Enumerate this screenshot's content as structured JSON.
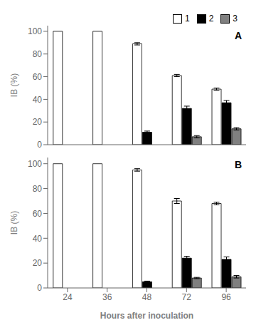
{
  "chart_data": [
    {
      "type": "bar",
      "annotations": [
        "A"
      ],
      "categories": [
        "24",
        "36",
        "48",
        "72",
        "96"
      ],
      "series": [
        {
          "name": "1",
          "color": "#ffffff",
          "values": [
            100,
            100,
            89,
            61,
            49
          ],
          "errors": [
            0,
            0,
            1,
            1,
            1
          ]
        },
        {
          "name": "2",
          "color": "#000000",
          "values": [
            0,
            0,
            11,
            32,
            37
          ],
          "errors": [
            0,
            0,
            1,
            2,
            2
          ]
        },
        {
          "name": "3",
          "color": "#808080",
          "values": [
            0,
            0,
            0,
            7,
            14
          ],
          "errors": [
            0,
            0,
            0,
            1,
            1
          ]
        }
      ],
      "ylabel": "IB (%)",
      "ylim": [
        0,
        105
      ],
      "yticks": [
        0,
        20,
        40,
        60,
        80,
        100
      ],
      "legend": "upper right",
      "grid": false,
      "tick_labels": "y"
    },
    {
      "type": "bar",
      "annotations": [
        "B"
      ],
      "categories": [
        "24",
        "36",
        "48",
        "72",
        "96"
      ],
      "series": [
        {
          "name": "1",
          "color": "#ffffff",
          "values": [
            100,
            100,
            95,
            70,
            68
          ],
          "errors": [
            0,
            0,
            1,
            2,
            1
          ]
        },
        {
          "name": "2",
          "color": "#000000",
          "values": [
            0,
            0,
            5,
            24,
            23
          ],
          "errors": [
            0,
            0,
            0.5,
            1.5,
            2
          ]
        },
        {
          "name": "3",
          "color": "#808080",
          "values": [
            0,
            0,
            0,
            8,
            9
          ],
          "errors": [
            0,
            0,
            0,
            0.5,
            1
          ]
        }
      ],
      "xlabel": "Hours after inoculation",
      "ylabel": "IB (%)",
      "ylim": [
        0,
        105
      ],
      "yticks": [
        0,
        20,
        40,
        60,
        80,
        100
      ],
      "grid": false
    }
  ]
}
